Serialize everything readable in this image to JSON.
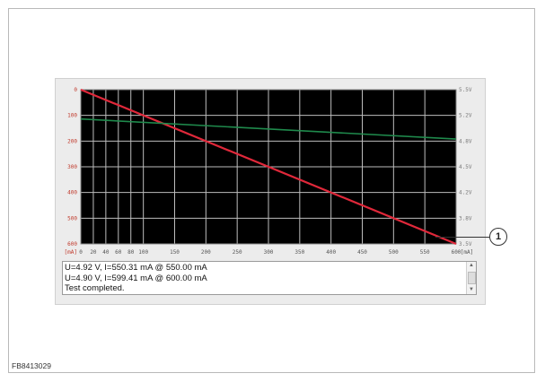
{
  "figure_id": "FB8413029",
  "callout_number": "1",
  "chart_data": {
    "type": "line",
    "x_unit_label": "[mA]",
    "y_left_unit_label": "[mA]",
    "x_ticks": [
      "0",
      "20",
      "40",
      "60",
      "80",
      "100",
      "150",
      "200",
      "250",
      "300",
      "350",
      "400",
      "450",
      "500",
      "550",
      "600"
    ],
    "y_left_ticks": [
      "0",
      "100",
      "200",
      "300",
      "400",
      "500",
      "600"
    ],
    "y_right_ticks": [
      "5.5V",
      "5.2V",
      "4.8V",
      "4.5V",
      "4.2V",
      "3.8V",
      "3.5V"
    ],
    "x": [
      0,
      600
    ],
    "series": [
      {
        "color": "#e0283a",
        "axis": "left",
        "x": [
          0,
          600
        ],
        "values": [
          0,
          600
        ]
      },
      {
        "color": "#1f8a4c",
        "axis": "right",
        "x": [
          0,
          600
        ],
        "values": [
          5.12,
          4.86
        ]
      }
    ],
    "grid": true
  },
  "log": {
    "lines": [
      "U=4.92 V, I=550.31 mA @ 550.00 mA",
      "U=4.90 V, I=599.41 mA @ 600.00 mA",
      "Test completed."
    ]
  },
  "colors": {
    "plot_background": "#000000",
    "grid": "#bdbdbd"
  },
  "icons": {
    "scroll_up": "▲",
    "scroll_down": "▼"
  }
}
